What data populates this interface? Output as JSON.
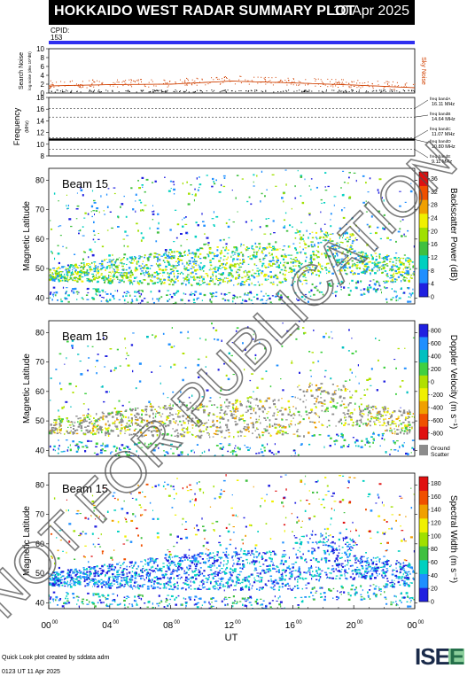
{
  "header": {
    "title": "HOKKAIDO WEST RADAR SUMMARY PLOT",
    "date": "10 Apr 2025"
  },
  "cpid": {
    "label": "CPID:",
    "value": "153"
  },
  "noise": {
    "ylabel": "Search Noise",
    "sublabel": "log noise (dex 10^dB)",
    "ticks": [
      "0",
      "2",
      "4",
      "6",
      "8",
      "10"
    ],
    "ylim": [
      0,
      10
    ],
    "right_label": "Sky Noise",
    "colors": {
      "search": "#000000",
      "sky": "#d04000"
    }
  },
  "frequency": {
    "ylabel": "Frequency",
    "unit": "(MHz)",
    "ticks": [
      "8",
      "10",
      "12",
      "14",
      "16",
      "18"
    ],
    "ylim": [
      8,
      18
    ],
    "bands": [
      {
        "label": "freq bandA",
        "value": "16.11 MHz",
        "mhz": 16.11
      },
      {
        "label": "freq bandB",
        "value": "14.64 MHz",
        "mhz": 14.64
      },
      {
        "label": "freq bandC",
        "value": "11.07 MHz",
        "mhz": 11.07
      },
      {
        "label": "freq bandD",
        "value": "10.80 MHz",
        "mhz": 10.8
      },
      {
        "label": "freq bandE",
        "value": "9.11 MHz",
        "mhz": 9.11
      }
    ]
  },
  "panels": [
    {
      "beam": "Beam 15",
      "ylabel": "Magnetic Latitude",
      "yticks": [
        "40",
        "50",
        "60",
        "70",
        "80"
      ],
      "ylim": [
        38,
        84
      ],
      "colorbar_label": "Backscatter Power (dB)",
      "colorbar_ticks": [
        "0",
        "4",
        "8",
        "12",
        "16",
        "20",
        "24",
        "28",
        "32",
        "36"
      ],
      "colorbar_range": [
        0,
        38
      ],
      "colorbar_colors": [
        "#2020e0",
        "#1f8fff",
        "#00d0c0",
        "#40c040",
        "#a0e000",
        "#f0f000",
        "#f0a000",
        "#f05000",
        "#e01010"
      ]
    },
    {
      "beam": "Beam 15",
      "ylabel": "Magnetic Latitude",
      "yticks": [
        "40",
        "50",
        "60",
        "70",
        "80"
      ],
      "ylim": [
        38,
        84
      ],
      "colorbar_label": "Doppler Velocity (m s⁻¹)",
      "colorbar_ticks": [
        "800",
        "600",
        "400",
        "200",
        "0",
        "-200",
        "-400",
        "-600",
        "-800"
      ],
      "colorbar_range": [
        -900,
        900
      ],
      "colorbar_colors": [
        "#2020e0",
        "#1f8fff",
        "#00c0c0",
        "#40d040",
        "#b0e000",
        "#f0f000",
        "#f0a000",
        "#f05000",
        "#e01010"
      ],
      "ground_scatter_label": "Ground Scatter"
    },
    {
      "beam": "Beam 15",
      "ylabel": "Magnetic Latitude",
      "yticks": [
        "40",
        "50",
        "60",
        "70",
        "80"
      ],
      "ylim": [
        38,
        84
      ],
      "colorbar_label": "Spectral Width (m s⁻¹)",
      "colorbar_ticks": [
        "0",
        "20",
        "40",
        "60",
        "80",
        "100",
        "120",
        "140",
        "160",
        "180"
      ],
      "colorbar_range": [
        0,
        190
      ],
      "colorbar_colors": [
        "#2020e0",
        "#1f8fff",
        "#00d0c0",
        "#40c040",
        "#a0e000",
        "#f0f000",
        "#f0a000",
        "#f05000",
        "#e01010"
      ]
    }
  ],
  "chart_data": [
    {
      "type": "line",
      "title": "",
      "ylabel": "Search Noise",
      "ylim": [
        0,
        10
      ],
      "x": [
        "00:00",
        "04:00",
        "08:00",
        "12:00",
        "16:00",
        "20:00",
        "00:00"
      ],
      "series": [
        {
          "name": "Sky Noise",
          "values": [
            1.6,
            1.9,
            2.0,
            2.7,
            2.3,
            1.8,
            1.2
          ]
        }
      ]
    },
    {
      "type": "line",
      "ylabel": "Frequency",
      "ylim": [
        8,
        18
      ],
      "x": [
        "00:00",
        "04:00",
        "08:00",
        "12:00",
        "16:00",
        "20:00",
        "00:00"
      ],
      "series": [
        {
          "values": [
            10.8,
            10.8,
            10.8,
            10.8,
            10.8,
            10.8,
            10.8
          ]
        }
      ]
    },
    {
      "type": "heatmap",
      "ylabel": "Magnetic Latitude",
      "xlabel": "UT",
      "ylim": [
        38,
        84
      ],
      "xlim": [
        0,
        24
      ]
    }
  ],
  "xaxis": {
    "label": "UT",
    "ticks": [
      "00",
      "04",
      "08",
      "12",
      "16",
      "20",
      "00"
    ],
    "tick_sup": "00"
  },
  "watermark": "NOT FOR PUBLICATION",
  "footer": {
    "line1": "Quick Look plot created by sddata adm",
    "line2": "0123 UT 11 Apr 2025"
  },
  "logo": {
    "text": "ISEE",
    "colors": {
      "dark": "#1a2a4a",
      "green": "#2ea84a"
    }
  }
}
